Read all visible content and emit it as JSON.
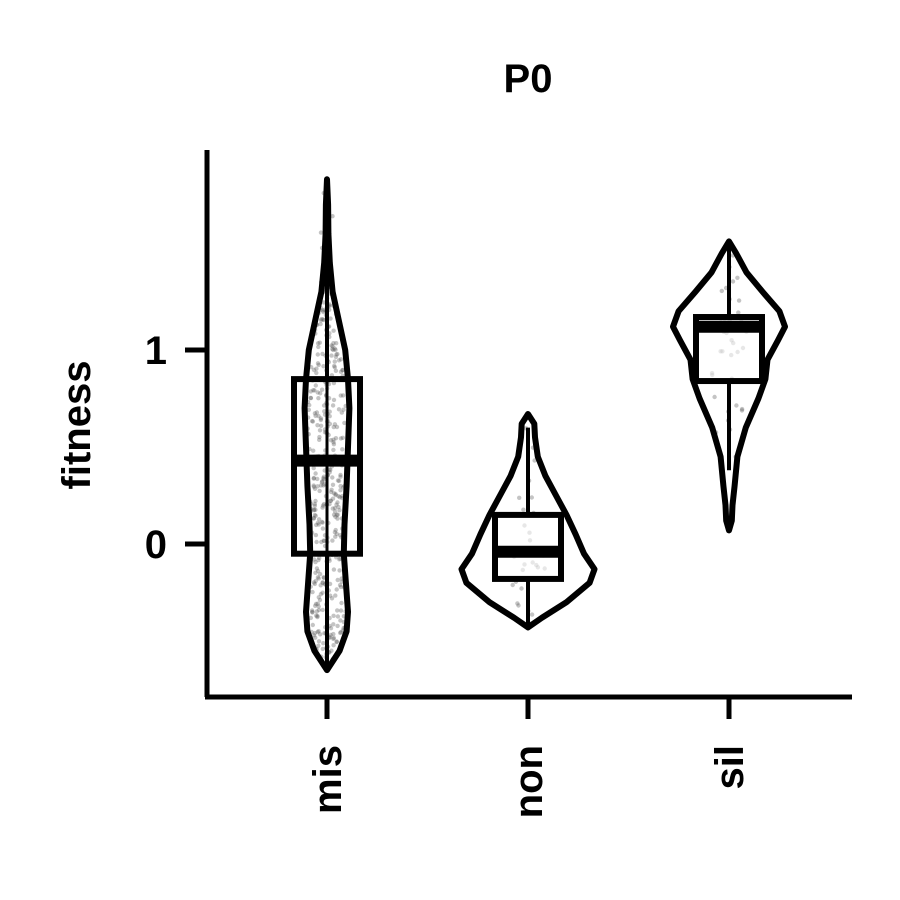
{
  "chart_data": {
    "type": "violin",
    "title": "P0",
    "xlabel": "",
    "ylabel": "fitness",
    "ylim": [
      -0.8,
      2.0
    ],
    "yticks": [
      0,
      1
    ],
    "ytick_labels": [
      "0",
      "1"
    ],
    "categories": [
      "mis",
      "non",
      "sil"
    ],
    "grid": false,
    "violins": [
      {
        "category": "mis",
        "min": -0.65,
        "max": 1.88,
        "q1": -0.05,
        "median": 0.43,
        "q3": 0.85,
        "whisker_low": -0.65,
        "whisker_high": 1.88,
        "density": [
          [
            -0.65,
            0.0
          ],
          [
            -0.55,
            0.18
          ],
          [
            -0.45,
            0.28
          ],
          [
            -0.35,
            0.3
          ],
          [
            -0.2,
            0.27
          ],
          [
            -0.05,
            0.24
          ],
          [
            0.1,
            0.25
          ],
          [
            0.3,
            0.28
          ],
          [
            0.5,
            0.3
          ],
          [
            0.7,
            0.32
          ],
          [
            0.85,
            0.3
          ],
          [
            1.0,
            0.26
          ],
          [
            1.15,
            0.17
          ],
          [
            1.3,
            0.08
          ],
          [
            1.45,
            0.04
          ],
          [
            1.6,
            0.02
          ],
          [
            1.75,
            0.015
          ],
          [
            1.88,
            0.0
          ]
        ]
      },
      {
        "category": "non",
        "min": -0.43,
        "max": 0.67,
        "q1": -0.18,
        "median": -0.04,
        "q3": 0.15,
        "whisker_low": -0.43,
        "whisker_high": 0.6,
        "density": [
          [
            -0.43,
            0.0
          ],
          [
            -0.38,
            0.2
          ],
          [
            -0.3,
            0.55
          ],
          [
            -0.2,
            0.88
          ],
          [
            -0.13,
            0.95
          ],
          [
            -0.05,
            0.8
          ],
          [
            0.05,
            0.68
          ],
          [
            0.15,
            0.55
          ],
          [
            0.25,
            0.4
          ],
          [
            0.35,
            0.25
          ],
          [
            0.45,
            0.14
          ],
          [
            0.55,
            0.1
          ],
          [
            0.62,
            0.09
          ],
          [
            0.67,
            0.0
          ]
        ]
      },
      {
        "category": "sil",
        "min": 0.07,
        "max": 1.56,
        "q1": 0.84,
        "median": 1.12,
        "q3": 1.17,
        "whisker_low": 0.38,
        "whisker_high": 1.56,
        "density": [
          [
            0.07,
            0.0
          ],
          [
            0.12,
            0.04
          ],
          [
            0.2,
            0.05
          ],
          [
            0.3,
            0.08
          ],
          [
            0.45,
            0.12
          ],
          [
            0.6,
            0.24
          ],
          [
            0.75,
            0.42
          ],
          [
            0.85,
            0.52
          ],
          [
            0.95,
            0.55
          ],
          [
            1.05,
            0.7
          ],
          [
            1.12,
            0.8
          ],
          [
            1.2,
            0.72
          ],
          [
            1.3,
            0.48
          ],
          [
            1.4,
            0.25
          ],
          [
            1.5,
            0.1
          ],
          [
            1.56,
            0.0
          ]
        ]
      }
    ],
    "jitter_points": {
      "mis": 420,
      "non": 30,
      "sil": 40
    }
  }
}
